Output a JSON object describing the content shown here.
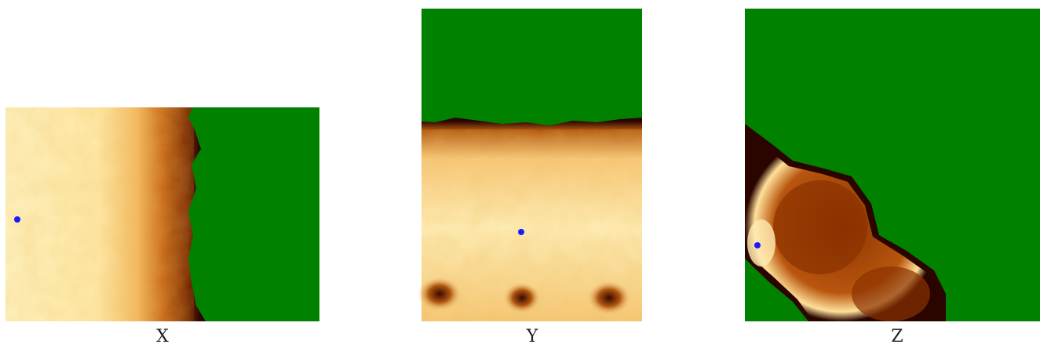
{
  "panels": [
    {
      "label": "X"
    },
    {
      "label": "Y"
    },
    {
      "label": "Z"
    }
  ]
}
